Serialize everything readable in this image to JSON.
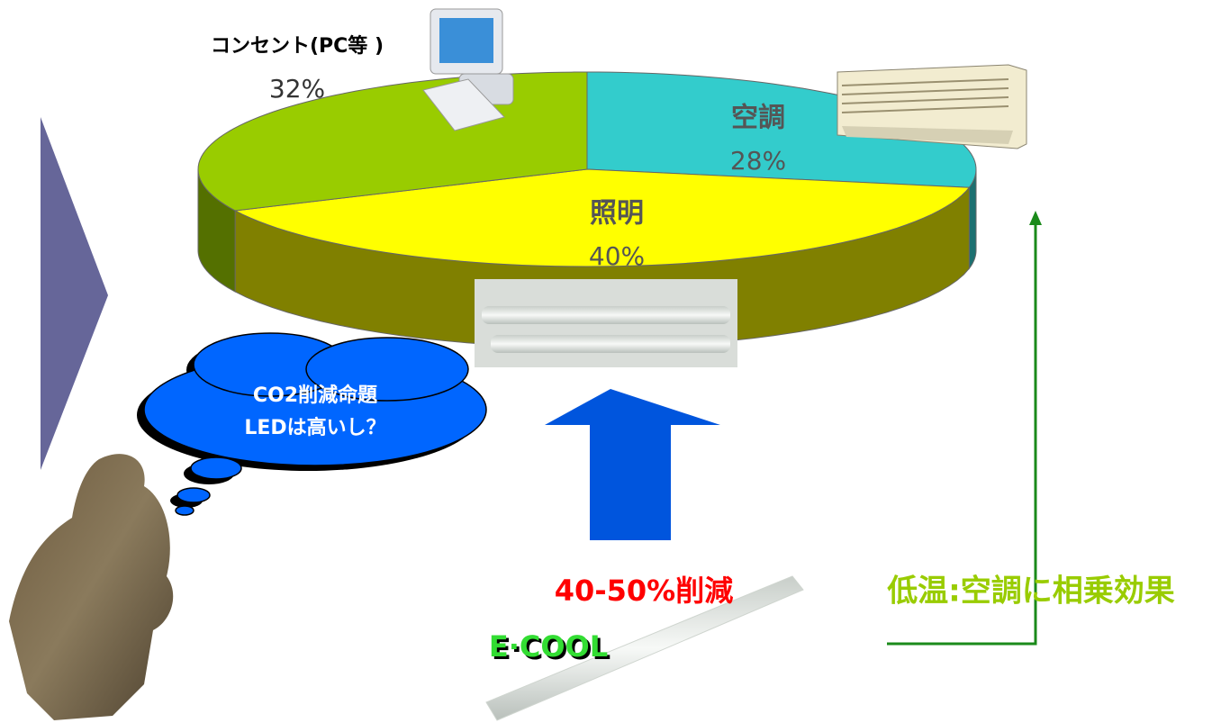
{
  "chart_data": {
    "type": "pie",
    "style": "3d",
    "categories": [
      "空調",
      "照明",
      "コンセント(PC等 )"
    ],
    "values": [
      28,
      40,
      32
    ],
    "value_labels": [
      "28%",
      "40%",
      "32%"
    ],
    "colors": [
      "#33cccc",
      "#ffff00",
      "#99cc00"
    ],
    "annotations": [
      "CO2削減命題",
      "LEDは高いし？",
      "40-50%削減",
      "E·COOL",
      "低温:空調に相乗効果"
    ]
  }
}
